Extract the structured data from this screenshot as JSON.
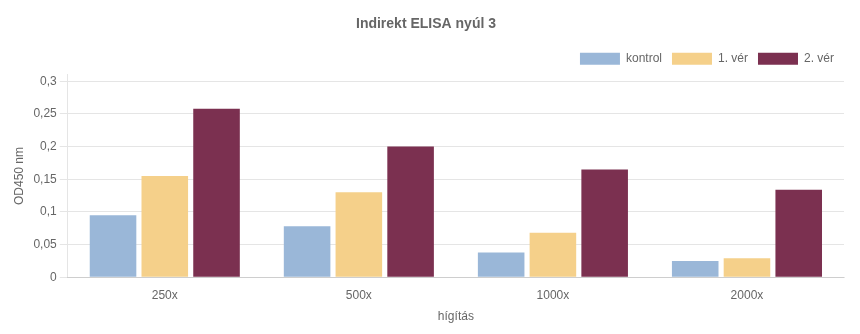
{
  "chart_data": {
    "type": "bar",
    "title": "Indirekt ELISA nyúl 3",
    "xlabel": "hígítás",
    "ylabel": "OD450 nm",
    "categories": [
      "250x",
      "500x",
      "1000x",
      "2000x"
    ],
    "series": [
      {
        "name": "kontrol",
        "color": "#9ab7d8",
        "values": [
          0.095,
          0.078,
          0.038,
          0.025
        ]
      },
      {
        "name": "1. vér",
        "color": "#f5d08a",
        "values": [
          0.155,
          0.13,
          0.068,
          0.029
        ]
      },
      {
        "name": "2. vér",
        "color": "#7b3050",
        "values": [
          0.258,
          0.2,
          0.165,
          0.134
        ]
      }
    ],
    "ylim": [
      0,
      0.31
    ],
    "yticks": [
      0,
      {
        "value": 0.05,
        "label": "0,05"
      },
      {
        "value": 0.1,
        "label": "0,1"
      },
      {
        "value": 0.15,
        "label": "0,15"
      },
      {
        "value": 0.2,
        "label": "0,2"
      },
      {
        "value": 0.25,
        "label": "0,25"
      },
      {
        "value": 0.3,
        "label": "0,3"
      }
    ],
    "grid": true,
    "legend": "upper right"
  }
}
